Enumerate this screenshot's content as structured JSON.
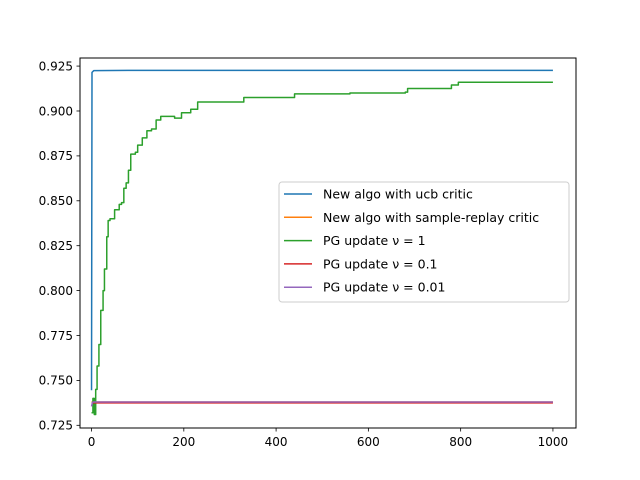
{
  "chart_data": {
    "type": "line",
    "title": "",
    "xlabel": "",
    "ylabel": "",
    "xlim": [
      -25,
      1050
    ],
    "ylim": [
      0.7235,
      0.9295
    ],
    "xticks": [
      0,
      200,
      400,
      600,
      800,
      1000
    ],
    "xtick_labels": [
      "0",
      "200",
      "400",
      "600",
      "800",
      "1000"
    ],
    "yticks": [
      0.725,
      0.75,
      0.775,
      0.8,
      0.825,
      0.85,
      0.875,
      0.9,
      0.925
    ],
    "ytick_labels": [
      "0.725",
      "0.750",
      "0.775",
      "0.800",
      "0.825",
      "0.850",
      "0.875",
      "0.900",
      "0.925"
    ],
    "grid": false,
    "legend_position": "center-right",
    "legend_labels": [
      "New algo with ucb critic",
      "New algo with sample-replay critic",
      "PG update ν = 1",
      "PG update ν = 0.1",
      "PG update ν = 0.01"
    ],
    "series": [
      {
        "name": "New algo with ucb critic",
        "color": "#1f77b4",
        "step": false,
        "points": [
          [
            0,
            0.7445
          ],
          [
            1,
            0.9215
          ],
          [
            5,
            0.9225
          ],
          [
            100,
            0.9226
          ],
          [
            1000,
            0.9226
          ]
        ]
      },
      {
        "name": "New algo with sample-replay critic",
        "color": "#ff7f0e",
        "step": false,
        "points": [
          [
            0,
            0.738
          ],
          [
            1000,
            0.738
          ]
        ]
      },
      {
        "name": "PG update ν = 1",
        "color": "#2ca02c",
        "step": true,
        "points": [
          [
            0,
            0.732
          ],
          [
            3,
            0.74
          ],
          [
            6,
            0.731
          ],
          [
            9,
            0.745
          ],
          [
            12,
            0.758
          ],
          [
            16,
            0.77
          ],
          [
            20,
            0.789
          ],
          [
            25,
            0.8
          ],
          [
            28,
            0.812
          ],
          [
            33,
            0.83
          ],
          [
            36,
            0.839
          ],
          [
            40,
            0.84
          ],
          [
            50,
            0.845
          ],
          [
            60,
            0.848
          ],
          [
            65,
            0.849
          ],
          [
            70,
            0.857
          ],
          [
            75,
            0.86
          ],
          [
            80,
            0.867
          ],
          [
            85,
            0.876
          ],
          [
            95,
            0.877
          ],
          [
            100,
            0.881
          ],
          [
            110,
            0.885
          ],
          [
            120,
            0.889
          ],
          [
            130,
            0.89
          ],
          [
            140,
            0.895
          ],
          [
            150,
            0.897
          ],
          [
            180,
            0.896
          ],
          [
            195,
            0.899
          ],
          [
            215,
            0.901
          ],
          [
            230,
            0.905
          ],
          [
            330,
            0.9075
          ],
          [
            440,
            0.9095
          ],
          [
            560,
            0.91
          ],
          [
            600,
            0.91
          ],
          [
            680,
            0.9105
          ],
          [
            685,
            0.9125
          ],
          [
            780,
            0.9145
          ],
          [
            795,
            0.916
          ],
          [
            1000,
            0.916
          ]
        ]
      },
      {
        "name": "PG update ν = 0.1",
        "color": "#d62728",
        "step": false,
        "points": [
          [
            0,
            0.7375
          ],
          [
            1000,
            0.7375
          ]
        ]
      },
      {
        "name": "PG update ν = 0.01",
        "color": "#9467bd",
        "step": false,
        "points": [
          [
            0,
            0.7355
          ],
          [
            2,
            0.7378
          ],
          [
            5,
            0.738
          ],
          [
            1000,
            0.738
          ]
        ]
      }
    ]
  }
}
